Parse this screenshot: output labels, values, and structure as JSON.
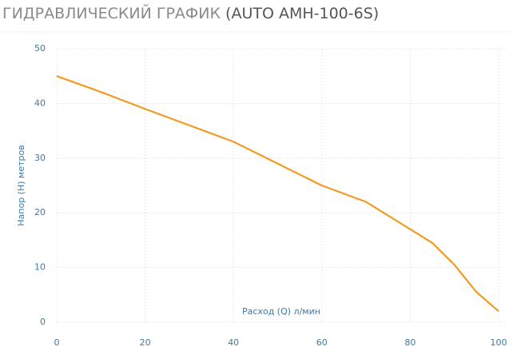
{
  "chart_data": {
    "type": "line",
    "title": "ГИДРАВЛИЧЕСКИЙ ГРАФИК",
    "subtitle": "(AUTO AMH-100-6S)",
    "x_label": "Расход (Q) л/мин",
    "y_label": "Напор (H) метров",
    "x": [
      0,
      10,
      20,
      30,
      40,
      50,
      60,
      70,
      80,
      85,
      90,
      95,
      100
    ],
    "series": [
      {
        "color": "#f29a22",
        "values": [
          45,
          42.1,
          39,
          36,
          33,
          29,
          25,
          22,
          17,
          14.5,
          10.5,
          5.5,
          2
        ]
      }
    ],
    "xlim": [
      0,
      100
    ],
    "xticks": [
      0,
      20,
      40,
      60,
      80,
      100
    ],
    "ylim": [
      0,
      50
    ],
    "yticks": [
      0,
      10,
      20,
      30,
      40,
      50
    ],
    "grid": true
  }
}
